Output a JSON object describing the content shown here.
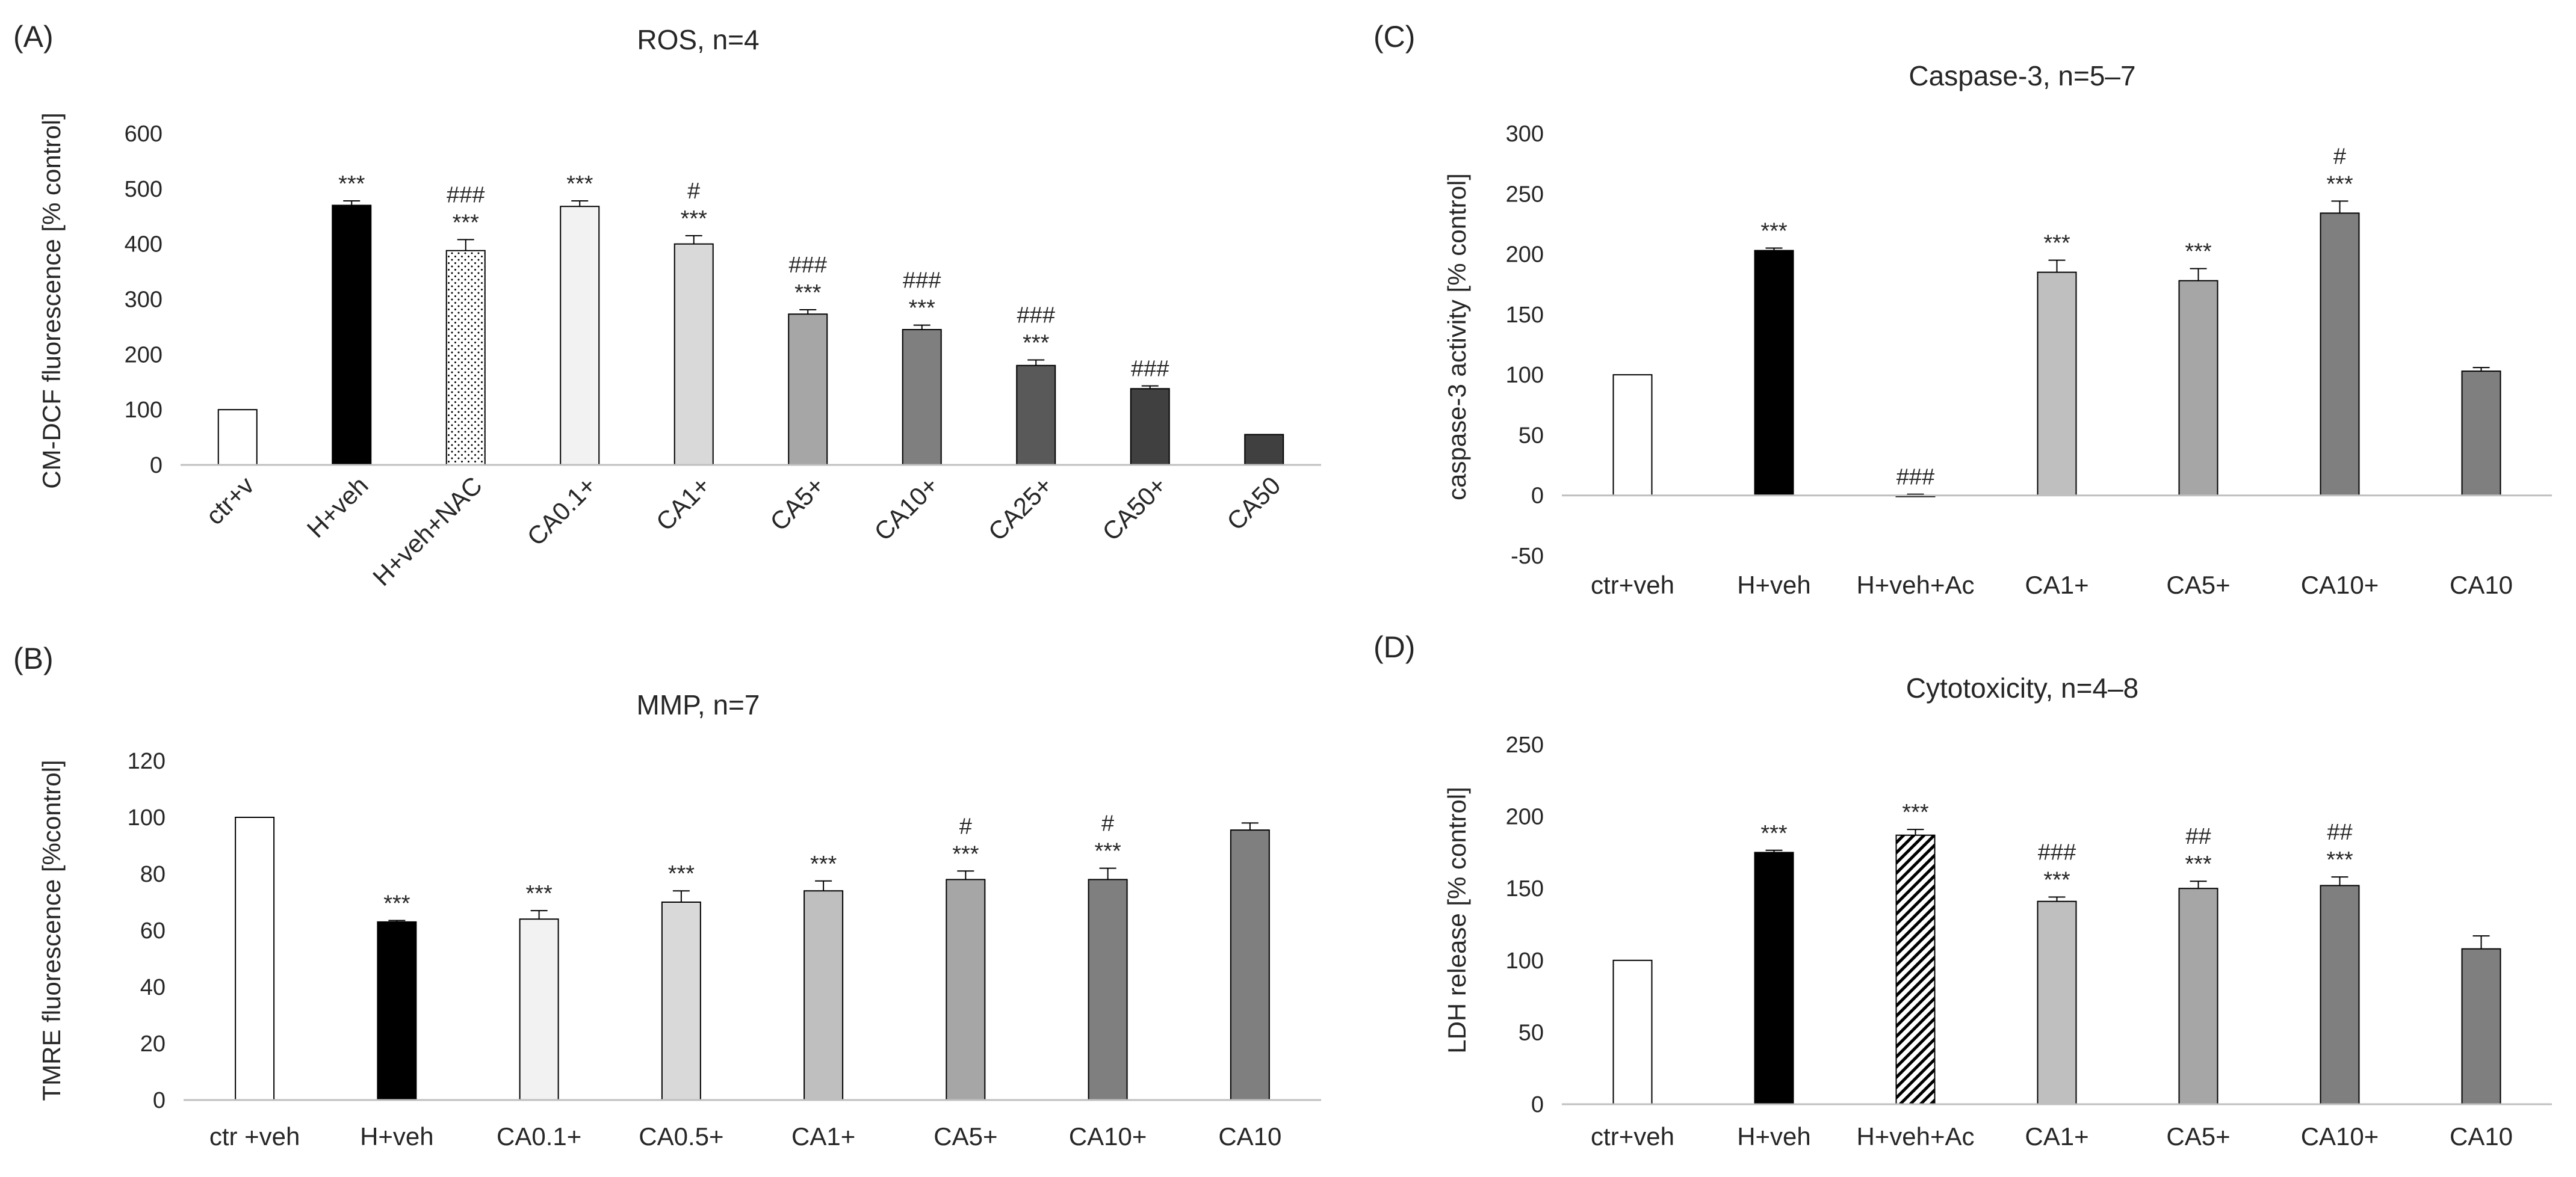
{
  "chart_data": [
    {
      "panel": "(A)",
      "type": "bar",
      "title": "ROS, n=4",
      "ylabel": "CM-DCF fluorescence [% control]",
      "xlabel": "",
      "ylim": [
        0,
        600
      ],
      "yticks": [
        "0",
        "100",
        "200",
        "300",
        "400",
        "500",
        "600"
      ],
      "rotated_categories": true,
      "categories": [
        "ctr+v",
        "H+veh",
        "H+veh+NAC",
        "CA0.1+",
        "CA1+",
        "CA5+",
        "CA10+",
        "CA25+",
        "CA50+",
        "CA50"
      ],
      "values": [
        100,
        470,
        388,
        468,
        400,
        273,
        245,
        180,
        138,
        55
      ],
      "errors": [
        0,
        8,
        20,
        10,
        15,
        8,
        8,
        10,
        5,
        0
      ],
      "fills": [
        "#ffffff",
        "#000000",
        "dots",
        "#f2f2f2",
        "#d9d9d9",
        "#a6a6a6",
        "#7f7f7f",
        "#595959",
        "#404040",
        "#404040"
      ],
      "significance": [
        [],
        [
          "***"
        ],
        [
          "###",
          "***"
        ],
        [
          "***"
        ],
        [
          "#",
          "***"
        ],
        [
          "###",
          "***"
        ],
        [
          "###",
          "***"
        ],
        [
          "###",
          "***"
        ],
        [
          "###"
        ],
        []
      ]
    },
    {
      "panel": "(B)",
      "type": "bar",
      "title": "MMP, n=7",
      "ylabel": "TMRE fluorescence [%control]",
      "xlabel": "",
      "ylim": [
        0,
        120
      ],
      "yticks": [
        "0",
        "20",
        "40",
        "60",
        "80",
        "100",
        "120"
      ],
      "rotated_categories": false,
      "categories": [
        "ctr +veh",
        "H+veh",
        "CA0.1+",
        "CA0.5+",
        "CA1+",
        "CA5+",
        "CA10+",
        "CA10"
      ],
      "values": [
        100,
        63,
        64,
        70,
        74,
        78,
        78,
        95.5
      ],
      "errors": [
        0,
        0.5,
        3,
        4,
        3.5,
        3,
        4,
        2.5
      ],
      "fills": [
        "#ffffff",
        "#000000",
        "#f2f2f2",
        "#d9d9d9",
        "#bfbfbf",
        "#a6a6a6",
        "#7f7f7f",
        "#7f7f7f"
      ],
      "significance": [
        [],
        [
          "***"
        ],
        [
          "***"
        ],
        [
          "***"
        ],
        [
          "***"
        ],
        [
          "#",
          "***"
        ],
        [
          "#",
          "***"
        ],
        []
      ]
    },
    {
      "panel": "(C)",
      "type": "bar",
      "title": "Caspase-3, n=5–7",
      "ylabel": "caspase-3 activity [% control]",
      "xlabel": "",
      "ylim": [
        -50,
        300
      ],
      "yticks": [
        "-50",
        "0",
        "50",
        "100",
        "150",
        "200",
        "250",
        "300"
      ],
      "rotated_categories": false,
      "categories": [
        "ctr+veh",
        "H+veh",
        "H+veh+Ac",
        "CA1+",
        "CA5+",
        "CA10+",
        "CA10"
      ],
      "values": [
        100,
        203,
        -1,
        185,
        178,
        234,
        103
      ],
      "errors": [
        0,
        2,
        2,
        10,
        10,
        10,
        3
      ],
      "fills": [
        "#ffffff",
        "#000000",
        "#ffffff",
        "#bfbfbf",
        "#a6a6a6",
        "#7f7f7f",
        "#7f7f7f"
      ],
      "significance": [
        [],
        [
          "***"
        ],
        [
          "###"
        ],
        [
          "***"
        ],
        [
          "***"
        ],
        [
          "#",
          "***"
        ],
        []
      ]
    },
    {
      "panel": "(D)",
      "type": "bar",
      "title": "Cytotoxicity, n=4–8",
      "ylabel": "LDH release  [% control]",
      "xlabel": "",
      "ylim": [
        0,
        250
      ],
      "yticks": [
        "0",
        "50",
        "100",
        "150",
        "200",
        "250"
      ],
      "rotated_categories": false,
      "categories": [
        "ctr+veh",
        "H+veh",
        "H+veh+Ac",
        "CA1+",
        "CA5+",
        "CA10+",
        "CA10"
      ],
      "values": [
        100,
        175,
        187,
        141,
        150,
        152,
        108
      ],
      "errors": [
        0,
        1.5,
        4,
        3,
        5,
        6,
        9
      ],
      "fills": [
        "#ffffff",
        "#000000",
        "hatch",
        "#bfbfbf",
        "#a6a6a6",
        "#7f7f7f",
        "#7f7f7f"
      ],
      "significance": [
        [],
        [
          "***"
        ],
        [
          "***"
        ],
        [
          "###",
          "***"
        ],
        [
          "##",
          "***"
        ],
        [
          "##",
          "***"
        ],
        []
      ]
    }
  ]
}
